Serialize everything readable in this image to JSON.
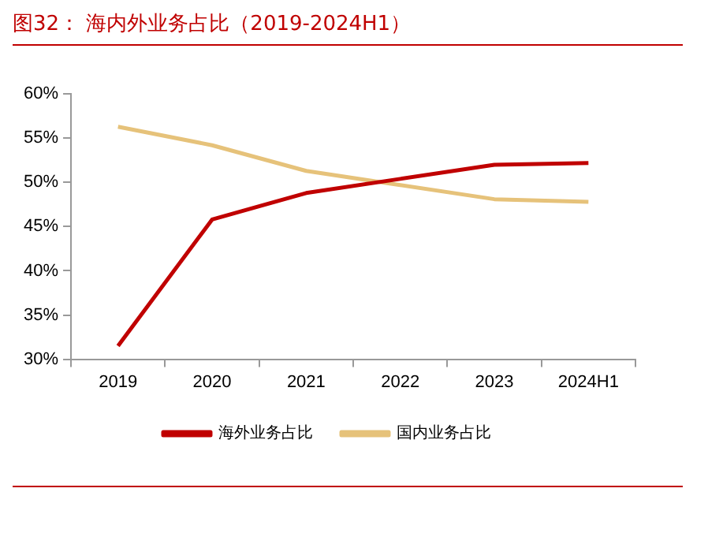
{
  "chart_data": {
    "type": "line",
    "title": "图32：  海内外业务占比（2019-2024H1）",
    "categories": [
      "2019",
      "2020",
      "2021",
      "2022",
      "2023",
      "2024H1"
    ],
    "series": [
      {
        "name": "海外业务占比",
        "color": "#c00000",
        "values": [
          31.5,
          45.8,
          48.8,
          50.4,
          52.0,
          52.2
        ]
      },
      {
        "name": "国内业务占比",
        "color": "#e6c27a",
        "values": [
          56.3,
          54.2,
          51.3,
          49.7,
          48.1,
          47.8
        ]
      }
    ],
    "ylim": [
      30,
      60
    ],
    "yticks": [
      {
        "value": 30,
        "label": "30%"
      },
      {
        "value": 35,
        "label": "35%"
      },
      {
        "value": 40,
        "label": "40%"
      },
      {
        "value": 45,
        "label": "45%"
      },
      {
        "value": 50,
        "label": "50%"
      },
      {
        "value": 55,
        "label": "55%"
      },
      {
        "value": 60,
        "label": "60%"
      }
    ],
    "grid": false,
    "legend": "bottom",
    "marker": "none",
    "line_style": "solid"
  }
}
